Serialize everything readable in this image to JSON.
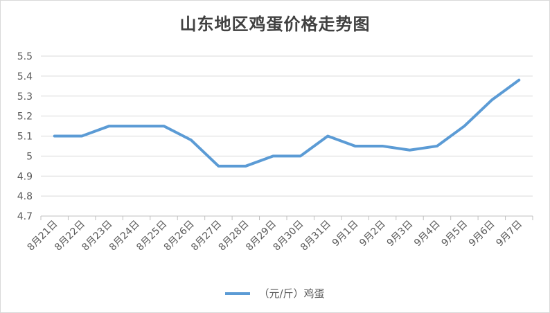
{
  "chart_data": {
    "type": "line",
    "title": "山东地区鸡蛋价格走势图",
    "categories": [
      "8月21日",
      "8月22日",
      "8月23日",
      "8月24日",
      "8月25日",
      "8月26日",
      "8月27日",
      "8月28日",
      "8月29日",
      "8月30日",
      "8月31日",
      "9月1日",
      "9月2日",
      "9月3日",
      "9月4日",
      "9月5日",
      "9月6日",
      "9月7日"
    ],
    "series": [
      {
        "name": "（元/斤）鸡蛋",
        "color": "#5b9bd5",
        "values": [
          5.1,
          5.1,
          5.15,
          5.15,
          5.15,
          5.08,
          4.95,
          4.95,
          5.0,
          5.0,
          5.1,
          5.05,
          5.05,
          5.03,
          5.05,
          5.15,
          5.28,
          5.38
        ]
      }
    ],
    "ylim": [
      4.7,
      5.5
    ],
    "yticks": [
      4.7,
      4.8,
      4.9,
      5,
      5.1,
      5.2,
      5.3,
      5.4,
      5.5
    ],
    "grid": true,
    "legend": "bottom"
  }
}
